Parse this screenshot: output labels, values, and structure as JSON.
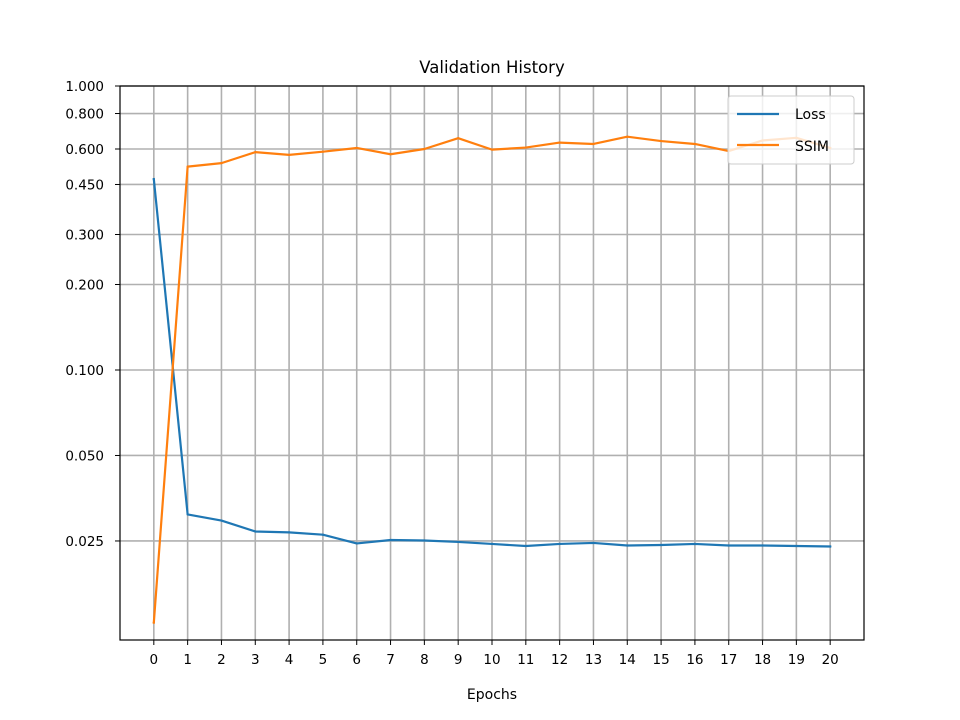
{
  "chart_data": {
    "type": "line",
    "title": "Validation History",
    "xlabel": "Epochs",
    "ylabel": "",
    "x": [
      0,
      1,
      2,
      3,
      4,
      5,
      6,
      7,
      8,
      9,
      10,
      11,
      12,
      13,
      14,
      15,
      16,
      17,
      18,
      19,
      20
    ],
    "xticks": [
      "0",
      "1",
      "2",
      "3",
      "4",
      "5",
      "6",
      "7",
      "8",
      "9",
      "10",
      "11",
      "12",
      "13",
      "14",
      "15",
      "16",
      "17",
      "18",
      "19",
      "20"
    ],
    "xlim": [
      -1,
      21
    ],
    "yscale": "log",
    "ylim": [
      0.0112,
      1.0
    ],
    "yticks": [
      0.025,
      0.05,
      0.1,
      0.2,
      0.3,
      0.45,
      0.6,
      0.8,
      1.0
    ],
    "ytick_labels": [
      "0.025",
      "0.050",
      "0.100",
      "0.200",
      "0.300",
      "0.450",
      "0.600",
      "0.800",
      "1.000"
    ],
    "grid": true,
    "legend": "top-right",
    "series": [
      {
        "name": "Loss",
        "color": "#1f77b4",
        "values": [
          0.47,
          0.031,
          0.0295,
          0.027,
          0.0268,
          0.0263,
          0.0245,
          0.0252,
          0.0251,
          0.0248,
          0.0244,
          0.024,
          0.0244,
          0.0246,
          0.0241,
          0.0242,
          0.0244,
          0.0241,
          0.0241,
          0.024,
          0.0239
        ]
      },
      {
        "name": "SSIM",
        "color": "#ff7f0e",
        "values": [
          0.0129,
          0.52,
          0.535,
          0.585,
          0.572,
          0.587,
          0.605,
          0.575,
          0.6,
          0.655,
          0.597,
          0.607,
          0.632,
          0.625,
          0.663,
          0.64,
          0.625,
          0.59,
          0.643,
          0.657,
          0.605
        ]
      }
    ]
  }
}
